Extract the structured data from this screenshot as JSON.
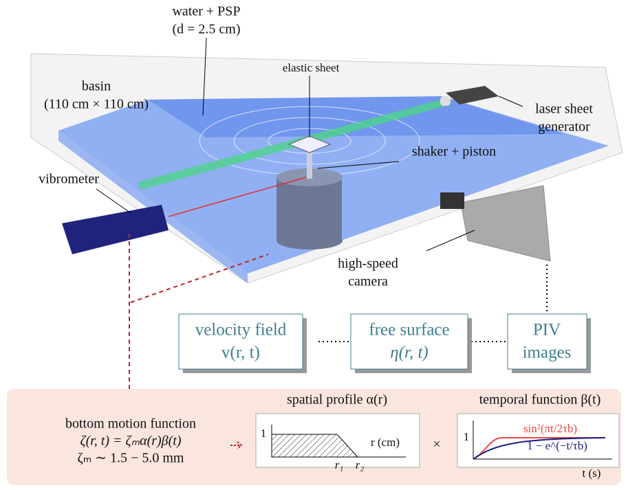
{
  "labels": {
    "water": [
      "water + PSP",
      "(d = 2.5 cm)"
    ],
    "elastic_sheet": "elastic sheet",
    "basin": [
      "basin",
      "(110 cm × 110 cm)"
    ],
    "laser": [
      "laser sheet",
      "generator"
    ],
    "shaker": "shaker + piston",
    "vibrometer": "vibrometer",
    "camera": [
      "high-speed",
      "camera"
    ]
  },
  "boxes": [
    {
      "lines": [
        "velocity field",
        "v(r, t)"
      ]
    },
    {
      "lines": [
        "free surface",
        "η(r, t)"
      ]
    },
    {
      "lines": [
        "PIV",
        "images"
      ]
    }
  ],
  "bottom_motion": [
    "bottom motion function",
    "ζ(r, t) = ζₘα(r)β(t)",
    "ζₘ ∼ 1.5 − 5.0 mm"
  ],
  "spatial_profile": {
    "title": "spatial profile α(r)",
    "y_label": "1",
    "x_label": "r (cm)",
    "r1": "r₁",
    "r2": "r₂"
  },
  "times": "×",
  "temporal_function": {
    "title": "temporal function β(t)",
    "y_label": "1",
    "curve1": "sin²(πt/2τb)",
    "curve2": "1 − e^(−t/τb)",
    "x_label": "t (s)"
  }
}
